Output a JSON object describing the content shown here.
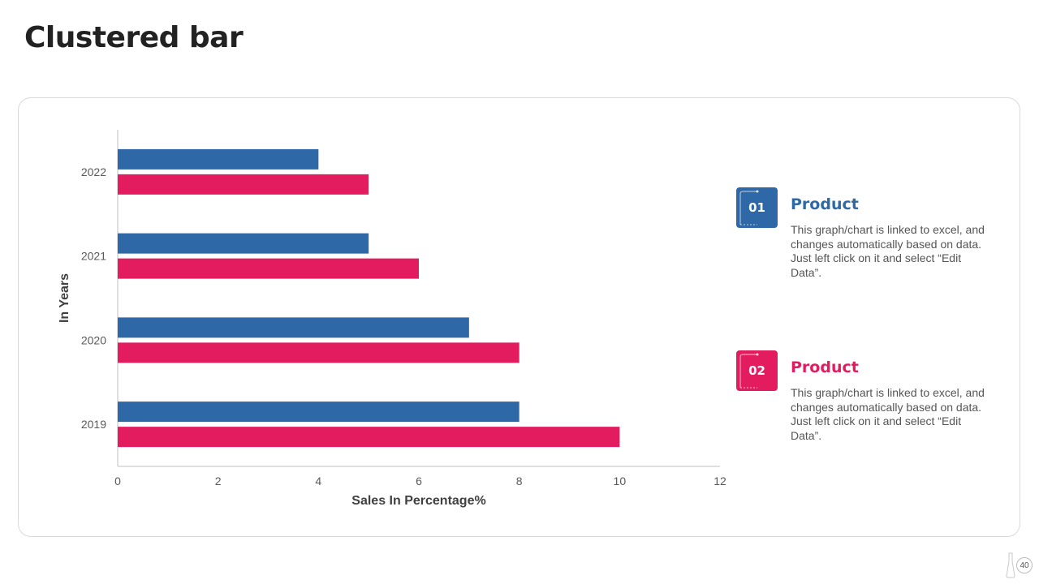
{
  "title": "Clustered bar",
  "page_number": "40",
  "colors": {
    "series1": "#2e68a6",
    "series2": "#e31c5f",
    "axis": "#bfbfbf",
    "tick_text": "#595959",
    "label_text": "#404040"
  },
  "chart_data": {
    "type": "bar",
    "orientation": "horizontal",
    "categories": [
      "2019",
      "2020",
      "2021",
      "2022"
    ],
    "series": [
      {
        "name": "Product 01",
        "values": [
          8,
          7,
          5,
          4
        ]
      },
      {
        "name": "Product 02",
        "values": [
          10,
          8,
          6,
          5
        ]
      }
    ],
    "xlabel": "Sales In Percentage%",
    "ylabel": "In Years",
    "xlim": [
      0,
      12
    ],
    "x_ticks": [
      0,
      2,
      4,
      6,
      8,
      10,
      12
    ],
    "grid": false,
    "legend": "right"
  },
  "legend": [
    {
      "number": "01",
      "title": "Product",
      "description": "This graph/chart is linked to excel, and changes automatically based on data. Just left click on it and select “Edit Data”."
    },
    {
      "number": "02",
      "title": "Product",
      "description": "This graph/chart is linked to excel, and changes automatically based on data. Just left click on it and select “Edit Data”."
    }
  ]
}
